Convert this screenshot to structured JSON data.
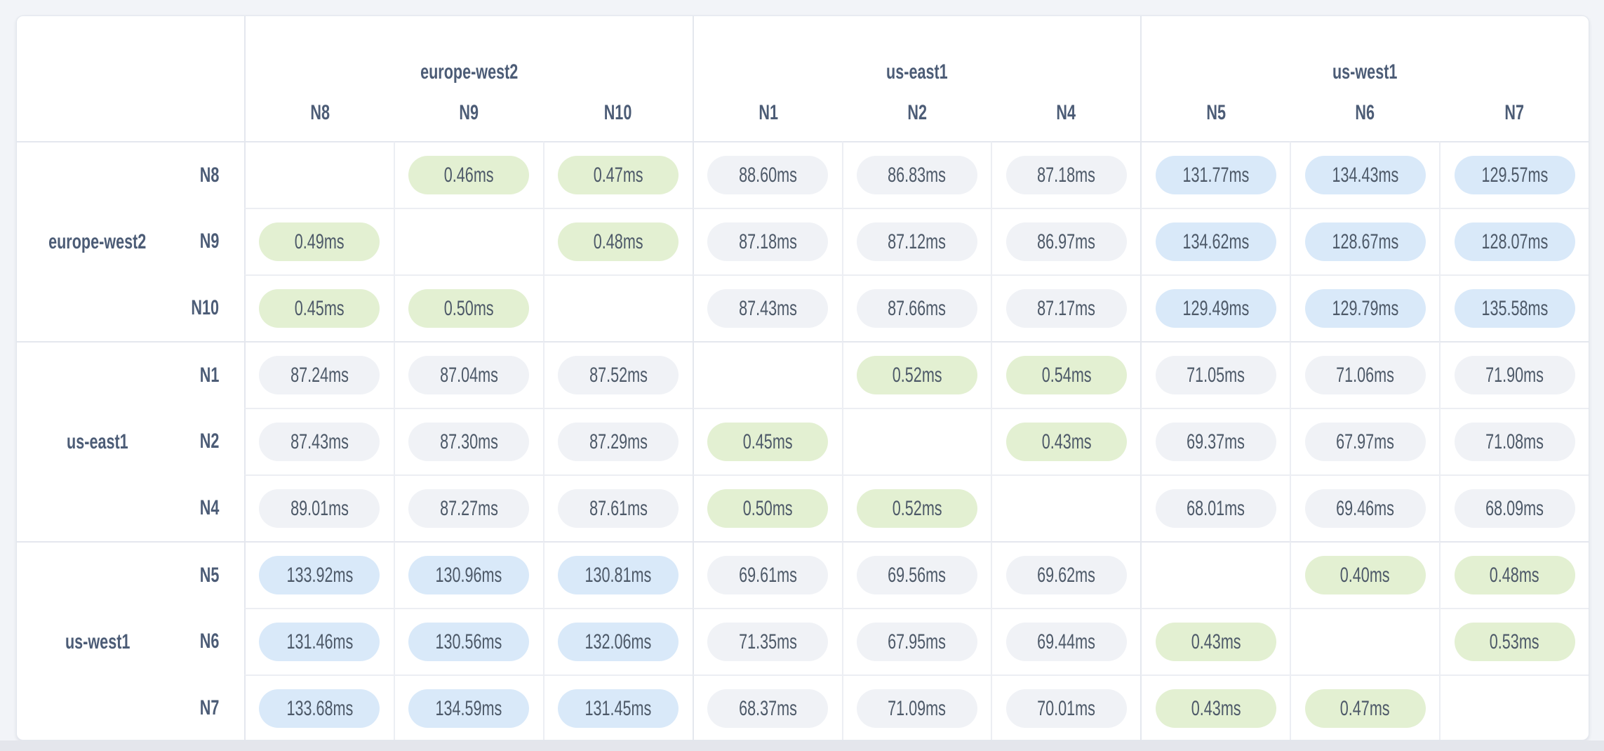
{
  "table": {
    "unit": "ms",
    "col_groups": [
      {
        "region": "europe-west2",
        "nodes": [
          "N8",
          "N9",
          "N10"
        ]
      },
      {
        "region": "us-east1",
        "nodes": [
          "N1",
          "N2",
          "N4"
        ]
      },
      {
        "region": "us-west1",
        "nodes": [
          "N5",
          "N6",
          "N7"
        ]
      }
    ],
    "row_groups": [
      {
        "region": "europe-west2",
        "nodes": [
          "N8",
          "N9",
          "N10"
        ]
      },
      {
        "region": "us-east1",
        "nodes": [
          "N1",
          "N2",
          "N4"
        ]
      },
      {
        "region": "us-west1",
        "nodes": [
          "N5",
          "N6",
          "N7"
        ]
      }
    ]
  },
  "chart_data": {
    "type": "heatmap",
    "rows": [
      "N8",
      "N9",
      "N10",
      "N1",
      "N2",
      "N4",
      "N5",
      "N6",
      "N7"
    ],
    "cols": [
      "N8",
      "N9",
      "N10",
      "N1",
      "N2",
      "N4",
      "N5",
      "N6",
      "N7"
    ],
    "row_regions": [
      "europe-west2",
      "europe-west2",
      "europe-west2",
      "us-east1",
      "us-east1",
      "us-east1",
      "us-west1",
      "us-west1",
      "us-west1"
    ],
    "unit": "ms",
    "matrix": [
      [
        null,
        0.46,
        0.47,
        88.6,
        86.83,
        87.18,
        131.77,
        134.43,
        129.57
      ],
      [
        0.49,
        null,
        0.48,
        87.18,
        87.12,
        86.97,
        134.62,
        128.67,
        128.07
      ],
      [
        0.45,
        0.5,
        null,
        87.43,
        87.66,
        87.17,
        129.49,
        129.79,
        135.58
      ],
      [
        87.24,
        87.04,
        87.52,
        null,
        0.52,
        0.54,
        71.05,
        71.06,
        71.9
      ],
      [
        87.43,
        87.3,
        87.29,
        0.45,
        null,
        0.43,
        69.37,
        67.97,
        71.08
      ],
      [
        89.01,
        87.27,
        87.61,
        0.5,
        0.52,
        null,
        68.01,
        69.46,
        68.09
      ],
      [
        133.92,
        130.96,
        130.81,
        69.61,
        69.56,
        69.62,
        null,
        0.4,
        0.48
      ],
      [
        131.46,
        130.56,
        132.06,
        71.35,
        67.95,
        69.44,
        0.43,
        null,
        0.53
      ],
      [
        133.68,
        134.59,
        131.45,
        68.37,
        71.09,
        70.01,
        0.43,
        0.47,
        null
      ]
    ],
    "colors": {
      "low_latency_bg": "#e3f0d2",
      "mid_latency_bg": "#f0f2f6",
      "high_latency_bg": "#d9e9f9",
      "text": "#4d5968",
      "header_text": "#4c5c76"
    }
  }
}
